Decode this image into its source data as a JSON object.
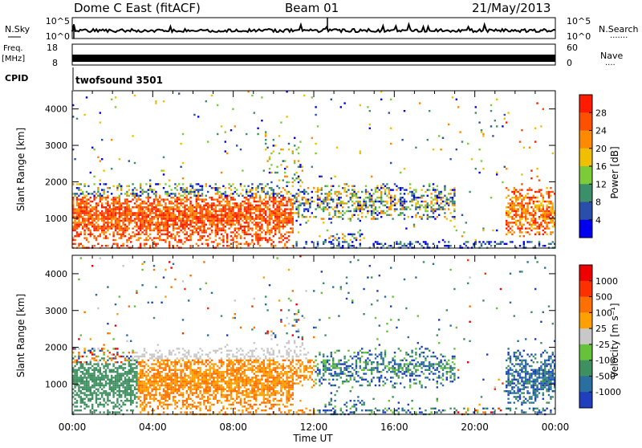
{
  "header": {
    "station": "Dome C East (fitACF)",
    "beam": "Beam 01",
    "date": "21/May/2013"
  },
  "top_strip": {
    "nsky_label": "N.Sky",
    "nsearch_label": "N.Search",
    "nsky_ticks": [
      "10^5",
      "10^0"
    ],
    "nsearch_ticks": [
      "10^5",
      "10^0"
    ],
    "freq_label_1": "Freq.",
    "freq_label_2": "[MHz]",
    "freq_ticks": [
      "18",
      "8"
    ],
    "nave_label": "Nave",
    "nave_ticks": [
      "60",
      "0"
    ],
    "cpid_label": "CPID",
    "cpid_value": "twofsound 3501"
  },
  "x_axis": {
    "label": "Time UT",
    "ticks": [
      "00:00",
      "04:00",
      "08:00",
      "12:00",
      "16:00",
      "20:00",
      "00:00"
    ]
  },
  "chart_data": [
    {
      "type": "heatmap",
      "title": "Power",
      "ylabel": "Slant Range [km]",
      "xlabel": "",
      "yticks": [
        "1000",
        "2000",
        "3000",
        "4000"
      ],
      "ylim": [
        180,
        4500
      ],
      "xlim_hours": [
        0,
        24
      ],
      "colorbar_label": "Power [dB]",
      "colorbar_ticks": [
        "28",
        "24",
        "20",
        "16",
        "12",
        "8",
        "4"
      ],
      "colors": [
        "#0000ee",
        "#2a4faa",
        "#3b8f6a",
        "#7ccc3a",
        "#f0c000",
        "#ff8a00",
        "#ff5000",
        "#ff1a00"
      ]
    },
    {
      "type": "heatmap",
      "title": "Velocity",
      "ylabel": "Slant Range [km]",
      "xlabel": "Time UT",
      "yticks": [
        "1000",
        "2000",
        "3000",
        "4000"
      ],
      "ylim": [
        180,
        4500
      ],
      "xlim_hours": [
        0,
        24
      ],
      "colorbar_label": "Velocity [m s⁻¹]",
      "colorbar_ticks": [
        "1000",
        "500",
        "100",
        "25",
        "-25",
        "-100",
        "-500",
        "-1000"
      ],
      "colors": [
        "#1f3fbf",
        "#2a6fa0",
        "#3f9060",
        "#66c23a",
        "#c8c8c8",
        "#ffa000",
        "#ff7000",
        "#ff3000",
        "#ee0000"
      ]
    }
  ]
}
